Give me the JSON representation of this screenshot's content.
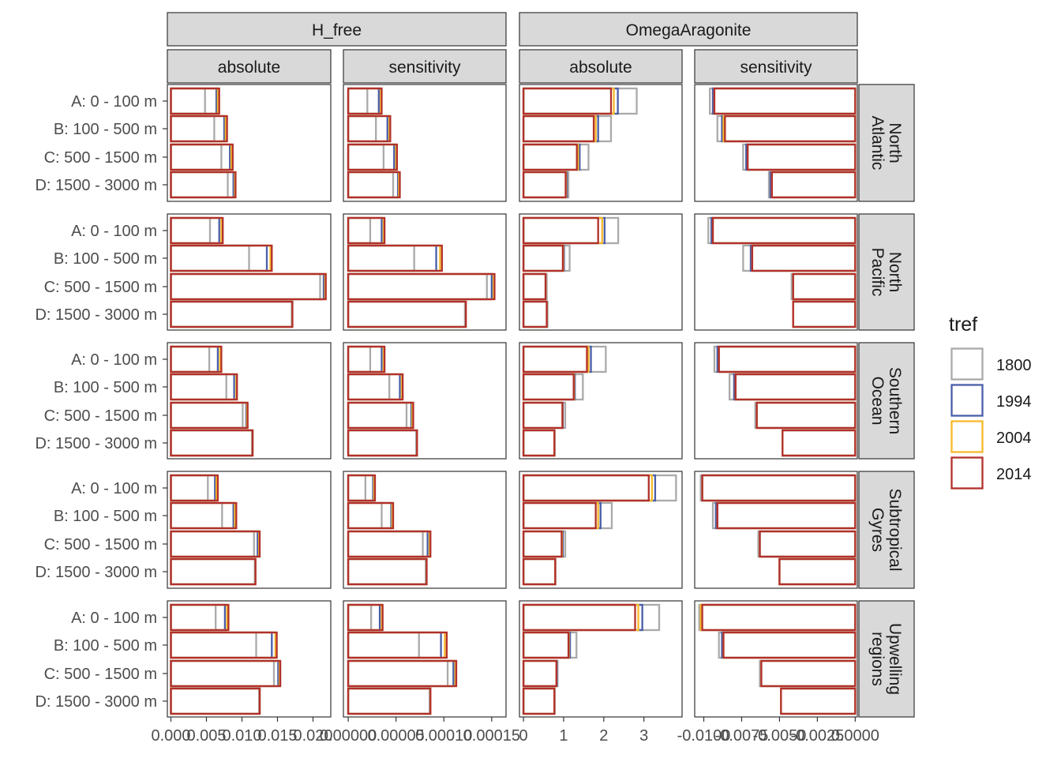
{
  "chart_data": {
    "type": "bar",
    "orientation": "horizontal",
    "layout": "faceted grid",
    "variables": [
      {
        "name": "H_free",
        "tick_labels": {
          "absolute": [
            "0.000",
            "0.005",
            "0.010",
            "0.015",
            "0.020"
          ],
          "sensitivity": [
            "0.00000",
            "0.00005",
            "0.00010",
            "0.00015"
          ]
        }
      },
      {
        "name": "OmegaAragonite",
        "tick_labels": {
          "absolute": [
            "0",
            "1",
            "2",
            "3"
          ],
          "sensitivity": [
            "-0.0100",
            "-0.0075",
            "-0.0050",
            "-0.0025",
            "0.0000"
          ]
        }
      }
    ],
    "column_facets": [
      "absolute",
      "sensitivity"
    ],
    "row_facets": [
      "North\nAtlantic",
      "North\nPacific",
      "Southern\nOcean",
      "Subtropical\nGyres",
      "Upwelling\nregions"
    ],
    "categories": [
      "A: 0 - 100 m",
      "B: 100 - 500 m",
      "C: 500 - 1500 m",
      "D: 1500 - 3000 m"
    ],
    "axis_ranges": {
      "H_free_absolute": [
        -0.0005,
        0.0225
      ],
      "H_free_sensitivity": [
        -5e-06,
        0.000165
      ],
      "OmegaAragonite_absolute": [
        -0.1,
        3.95
      ],
      "OmegaAragonite_sensitivity": [
        -0.0106,
        0.00014
      ]
    },
    "axis_ticks": {
      "H_free_absolute": [
        0,
        0.005,
        0.01,
        0.015,
        0.02
      ],
      "H_free_sensitivity": [
        0,
        5e-05,
        0.0001,
        0.00015
      ],
      "OmegaAragonite_absolute": [
        0,
        1,
        2,
        3
      ],
      "OmegaAragonite_sensitivity": [
        -0.01,
        -0.0075,
        -0.005,
        -0.0025,
        0
      ]
    },
    "legend": {
      "title": "tref",
      "position": "right",
      "entries": [
        "1800",
        "1994",
        "2004",
        "2014"
      ]
    },
    "series_colors": {
      "1800": "#aaaaaa",
      "1994": "#4a5ea8",
      "2004": "#f7b92b",
      "2014": "#b2302b"
    },
    "series_order": [
      "1800",
      "1994",
      "2004",
      "2014"
    ],
    "values": {
      "North\nAtlantic": {
        "H_free|absolute": [
          [
            0.0048,
            0.0064,
            0.0066,
            0.0068
          ],
          [
            0.0061,
            0.0075,
            0.0077,
            0.0079
          ],
          [
            0.0071,
            0.0083,
            0.0085,
            0.0087
          ],
          [
            0.008,
            0.0088,
            0.009,
            0.0091
          ]
        ],
        "H_free|sensitivity": [
          [
            2e-05,
            3.2e-05,
            3.4e-05,
            3.5e-05
          ],
          [
            2.9e-05,
            4.1e-05,
            4.3e-05,
            4.4e-05
          ],
          [
            3.7e-05,
            4.8e-05,
            5e-05,
            5.1e-05
          ],
          [
            4.7e-05,
            5.2e-05,
            5.3e-05,
            5.4e-05
          ]
        ],
        "OmegaAragonite|absolute": [
          [
            2.82,
            2.35,
            2.25,
            2.18
          ],
          [
            2.18,
            1.86,
            1.8,
            1.75
          ],
          [
            1.62,
            1.4,
            1.36,
            1.33
          ],
          [
            1.12,
            1.08,
            1.06,
            1.05
          ]
        ],
        "OmegaAragonite|sensitivity": [
          [
            -0.0096,
            -0.0094,
            -0.0093,
            -0.0093
          ],
          [
            -0.0091,
            -0.0088,
            -0.0087,
            -0.0086
          ],
          [
            -0.0074,
            -0.0072,
            -0.0071,
            -0.0071
          ],
          [
            -0.0057,
            -0.0056,
            -0.0055,
            -0.0055
          ]
        ]
      },
      "North\nPacific": {
        "H_free|absolute": [
          [
            0.0055,
            0.0068,
            0.0071,
            0.0073
          ],
          [
            0.011,
            0.0135,
            0.014,
            0.0142
          ],
          [
            0.021,
            0.0215,
            0.0217,
            0.0218
          ],
          [
            0.017,
            0.0171,
            0.0171,
            0.0171
          ]
        ],
        "H_free|sensitivity": [
          [
            2.3e-05,
            3.5e-05,
            3.7e-05,
            3.8e-05
          ],
          [
            6.9e-05,
            9.2e-05,
            9.6e-05,
            9.8e-05
          ],
          [
            0.000145,
            0.00015,
            0.000152,
            0.000153
          ],
          [
            0.000122,
            0.000123,
            0.000123,
            0.000123
          ]
        ],
        "OmegaAragonite|absolute": [
          [
            2.36,
            2.02,
            1.96,
            1.86
          ],
          [
            1.15,
            1.01,
            0.99,
            0.98
          ],
          [
            0.58,
            0.55,
            0.55,
            0.55
          ],
          [
            0.6,
            0.58,
            0.58,
            0.58
          ]
        ],
        "OmegaAragonite|sensitivity": [
          [
            -0.0097,
            -0.0095,
            -0.0094,
            -0.0094
          ],
          [
            -0.0074,
            -0.0069,
            -0.0068,
            -0.0068
          ],
          [
            -0.0042,
            -0.0041,
            -0.0041,
            -0.0041
          ],
          [
            -0.0041,
            -0.0041,
            -0.0041,
            -0.0041
          ]
        ]
      },
      "Southern\nOcean": {
        "H_free|absolute": [
          [
            0.0054,
            0.0066,
            0.0069,
            0.0071
          ],
          [
            0.0078,
            0.0089,
            0.0092,
            0.0093
          ],
          [
            0.0101,
            0.0106,
            0.0107,
            0.0108
          ],
          [
            0.0114,
            0.0115,
            0.0115,
            0.0115
          ]
        ],
        "H_free|sensitivity": [
          [
            2.3e-05,
            3.5e-05,
            3.7e-05,
            3.8e-05
          ],
          [
            4.3e-05,
            5.4e-05,
            5.6e-05,
            5.7e-05
          ],
          [
            6.1e-05,
            6.6e-05,
            6.7e-05,
            6.8e-05
          ],
          [
            7.1e-05,
            7.2e-05,
            7.2e-05,
            7.2e-05
          ]
        ],
        "OmegaAragonite|absolute": [
          [
            2.05,
            1.68,
            1.62,
            1.58
          ],
          [
            1.48,
            1.28,
            1.26,
            1.25
          ],
          [
            1.04,
            0.98,
            0.97,
            0.97
          ],
          [
            0.78,
            0.77,
            0.77,
            0.77
          ]
        ],
        "OmegaAragonite|sensitivity": [
          [
            -0.0093,
            -0.0091,
            -0.009,
            -0.009
          ],
          [
            -0.0083,
            -0.008,
            -0.0079,
            -0.0079
          ],
          [
            -0.0066,
            -0.0065,
            -0.0065,
            -0.0065
          ],
          [
            -0.0048,
            -0.0048,
            -0.0048,
            -0.0048
          ]
        ]
      },
      "Subtropical\nGyres": {
        "H_free|absolute": [
          [
            0.0052,
            0.0062,
            0.0064,
            0.0066
          ],
          [
            0.0072,
            0.0088,
            0.009,
            0.0092
          ],
          [
            0.0117,
            0.0122,
            0.0124,
            0.0125
          ],
          [
            0.0118,
            0.0119,
            0.0119,
            0.0119
          ]
        ],
        "H_free|sensitivity": [
          [
            1.8e-05,
            2.6e-05,
            2.7e-05,
            2.8e-05
          ],
          [
            3.5e-05,
            4.5e-05,
            4.6e-05,
            4.7e-05
          ],
          [
            7.8e-05,
            8.3e-05,
            8.5e-05,
            8.6e-05
          ],
          [
            8.1e-05,
            8.2e-05,
            8.2e-05,
            8.2e-05
          ]
        ],
        "OmegaAragonite|absolute": [
          [
            3.8,
            3.28,
            3.2,
            3.12
          ],
          [
            2.2,
            1.92,
            1.86,
            1.8
          ],
          [
            1.04,
            0.98,
            0.96,
            0.95
          ],
          [
            0.8,
            0.79,
            0.79,
            0.79
          ]
        ],
        "OmegaAragonite|sensitivity": [
          [
            -0.0102,
            -0.0101,
            -0.0101,
            -0.0101
          ],
          [
            -0.0094,
            -0.0092,
            -0.0091,
            -0.0091
          ],
          [
            -0.0064,
            -0.0063,
            -0.0063,
            -0.0063
          ],
          [
            -0.005,
            -0.005,
            -0.005,
            -0.005
          ]
        ]
      },
      "Upwelling\nregions": {
        "H_free|absolute": [
          [
            0.0063,
            0.0076,
            0.0079,
            0.0081
          ],
          [
            0.012,
            0.0142,
            0.0147,
            0.0149
          ],
          [
            0.0145,
            0.0151,
            0.0153,
            0.0154
          ],
          [
            0.0124,
            0.0125,
            0.0125,
            0.0125
          ]
        ],
        "H_free|sensitivity": [
          [
            2.4e-05,
            3.3e-05,
            3.5e-05,
            3.6e-05
          ],
          [
            7.4e-05,
            9.7e-05,
            0.000101,
            0.000103
          ],
          [
            0.000104,
            0.00011,
            0.000112,
            0.000113
          ],
          [
            8.5e-05,
            8.6e-05,
            8.6e-05,
            8.6e-05
          ]
        ],
        "OmegaAragonite|absolute": [
          [
            3.38,
            2.96,
            2.86,
            2.78
          ],
          [
            1.32,
            1.16,
            1.13,
            1.12
          ],
          [
            0.85,
            0.83,
            0.82,
            0.82
          ],
          [
            0.78,
            0.77,
            0.77,
            0.77
          ]
        ],
        "OmegaAragonite|sensitivity": [
          [
            -0.0103,
            -0.0102,
            -0.0102,
            -0.0101
          ],
          [
            -0.009,
            -0.0088,
            -0.0087,
            -0.0087
          ],
          [
            -0.0063,
            -0.0062,
            -0.0062,
            -0.0062
          ],
          [
            -0.0049,
            -0.0049,
            -0.0049,
            -0.0049
          ]
        ]
      }
    }
  }
}
